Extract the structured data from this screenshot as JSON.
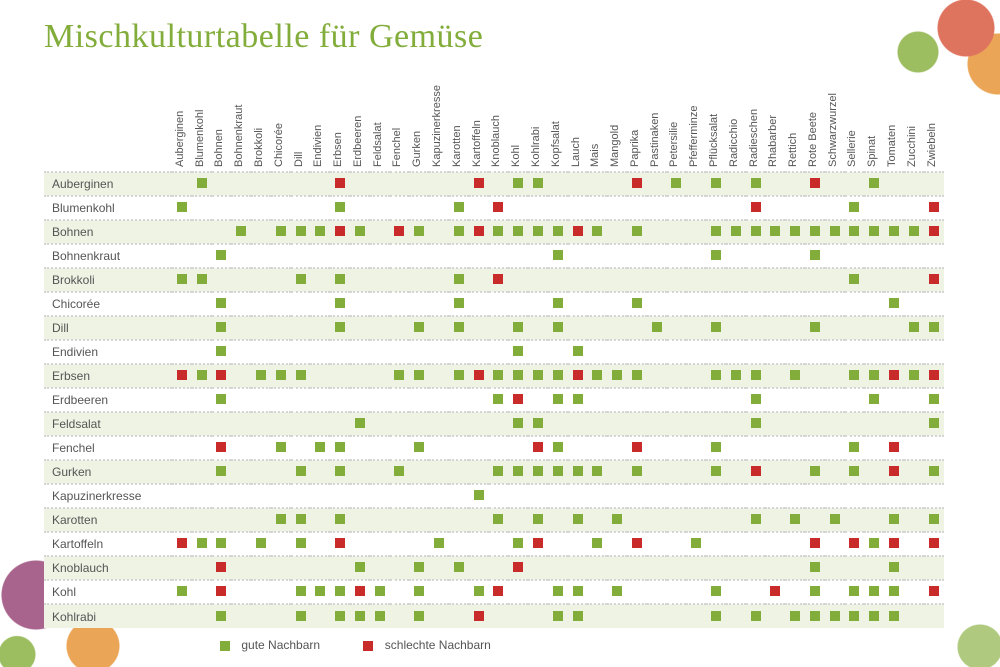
{
  "title": "Mischkulturtabelle für Gemüse",
  "good_color": "#82ad3b",
  "bad_color": "#c92a2a",
  "row_alt_bg": "#eff3e4",
  "legend": {
    "good": "gute Nachbarn",
    "bad": "schlechte Nachbarn"
  },
  "columns": [
    "Auberginen",
    "Blumenkohl",
    "Bohnen",
    "Bohnenkraut",
    "Brokkoli",
    "Chicorée",
    "Dill",
    "Endivien",
    "Erbsen",
    "Erdbeeren",
    "Feldsalat",
    "Fenchel",
    "Gurken",
    "Kapuzinerkresse",
    "Karotten",
    "Kartoffeln",
    "Knoblauch",
    "Kohl",
    "Kohlrabi",
    "Kopfsalat",
    "Lauch",
    "Mais",
    "Mangold",
    "Paprika",
    "Pastinaken",
    "Petersilie",
    "Pfefferminze",
    "Pflücksalat",
    "Radicchio",
    "Radieschen",
    "Rhabarber",
    "Rettich",
    "Rote Beete",
    "Schwarzwurzel",
    "Sellerie",
    "Spinat",
    "Tomaten",
    "Zucchini",
    "Zwiebeln"
  ],
  "rows": [
    {
      "label": "Auberginen",
      "cells": {
        "Blumenkohl": "g",
        "Erbsen": "b",
        "Kartoffeln": "b",
        "Kohl": "g",
        "Kohlrabi": "g",
        "Paprika": "b",
        "Petersilie": "g",
        "Pflücksalat": "g",
        "Radieschen": "g",
        "Rote Beete": "b",
        "Spinat": "g"
      }
    },
    {
      "label": "Blumenkohl",
      "cells": {
        "Auberginen": "g",
        "Erbsen": "g",
        "Karotten": "g",
        "Knoblauch": "b",
        "Radieschen": "b",
        "Sellerie": "g",
        "Zwiebeln": "b"
      }
    },
    {
      "label": "Bohnen",
      "cells": {
        "Bohnenkraut": "g",
        "Chicorée": "g",
        "Dill": "g",
        "Endivien": "g",
        "Erbsen": "b",
        "Erdbeeren": "g",
        "Fenchel": "b",
        "Gurken": "g",
        "Karotten": "g",
        "Kartoffeln": "b",
        "Knoblauch": "g",
        "Kohl": "g",
        "Kohlrabi": "g",
        "Kopfsalat": "g",
        "Lauch": "b",
        "Mais": "g",
        "Paprika": "g",
        "Pflücksalat": "g",
        "Radicchio": "g",
        "Radieschen": "g",
        "Rhabarber": "g",
        "Rettich": "g",
        "Rote Beete": "g",
        "Schwarzwurzel": "g",
        "Sellerie": "g",
        "Spinat": "g",
        "Tomaten": "g",
        "Zucchini": "g",
        "Zwiebeln": "b"
      }
    },
    {
      "label": "Bohnenkraut",
      "cells": {
        "Bohnen": "g",
        "Kopfsalat": "g",
        "Pflücksalat": "g",
        "Rote Beete": "g"
      }
    },
    {
      "label": "Brokkoli",
      "cells": {
        "Auberginen": "g",
        "Blumenkohl": "g",
        "Dill": "g",
        "Erbsen": "g",
        "Karotten": "g",
        "Knoblauch": "b",
        "Sellerie": "g",
        "Zwiebeln": "b"
      }
    },
    {
      "label": "Chicorée",
      "cells": {
        "Bohnen": "g",
        "Erbsen": "g",
        "Karotten": "g",
        "Kopfsalat": "g",
        "Paprika": "g",
        "Tomaten": "g"
      }
    },
    {
      "label": "Dill",
      "cells": {
        "Bohnen": "g",
        "Erbsen": "g",
        "Gurken": "g",
        "Karotten": "g",
        "Kohl": "g",
        "Kopfsalat": "g",
        "Pastinaken": "g",
        "Pflücksalat": "g",
        "Rote Beete": "g",
        "Zucchini": "g",
        "Zwiebeln": "g"
      }
    },
    {
      "label": "Endivien",
      "cells": {
        "Bohnen": "g",
        "Kohl": "g",
        "Lauch": "g"
      }
    },
    {
      "label": "Erbsen",
      "cells": {
        "Auberginen": "b",
        "Blumenkohl": "g",
        "Bohnen": "b",
        "Brokkoli": "g",
        "Chicorée": "g",
        "Dill": "g",
        "Fenchel": "g",
        "Gurken": "g",
        "Karotten": "g",
        "Kartoffeln": "b",
        "Knoblauch": "g",
        "Kohl": "g",
        "Kohlrabi": "g",
        "Kopfsalat": "g",
        "Lauch": "b",
        "Mais": "g",
        "Mangold": "g",
        "Paprika": "g",
        "Pflücksalat": "g",
        "Radicchio": "g",
        "Radieschen": "g",
        "Rettich": "g",
        "Sellerie": "g",
        "Spinat": "g",
        "Tomaten": "b",
        "Zucchini": "g",
        "Zwiebeln": "b"
      }
    },
    {
      "label": "Erdbeeren",
      "cells": {
        "Bohnen": "g",
        "Knoblauch": "g",
        "Kohl": "b",
        "Kopfsalat": "g",
        "Lauch": "g",
        "Radieschen": "g",
        "Spinat": "g",
        "Zwiebeln": "g"
      }
    },
    {
      "label": "Feldsalat",
      "cells": {
        "Erdbeeren": "g",
        "Kohl": "g",
        "Kohlrabi": "g",
        "Radieschen": "g",
        "Zwiebeln": "g"
      }
    },
    {
      "label": "Fenchel",
      "cells": {
        "Bohnen": "b",
        "Chicorée": "g",
        "Endivien": "g",
        "Erbsen": "g",
        "Gurken": "g",
        "Kohlrabi": "b",
        "Kopfsalat": "g",
        "Paprika": "b",
        "Pflücksalat": "g",
        "Sellerie": "g",
        "Tomaten": "b"
      }
    },
    {
      "label": "Gurken",
      "cells": {
        "Bohnen": "g",
        "Dill": "g",
        "Erbsen": "g",
        "Fenchel": "g",
        "Knoblauch": "g",
        "Kohl": "g",
        "Kohlrabi": "g",
        "Kopfsalat": "g",
        "Lauch": "g",
        "Mais": "g",
        "Paprika": "g",
        "Pflücksalat": "g",
        "Radieschen": "b",
        "Rote Beete": "g",
        "Sellerie": "g",
        "Tomaten": "b",
        "Zwiebeln": "g"
      }
    },
    {
      "label": "Kapuzinerkresse",
      "cells": {
        "Kartoffeln": "g"
      }
    },
    {
      "label": "Karotten",
      "cells": {
        "Chicorée": "g",
        "Dill": "g",
        "Erbsen": "g",
        "Knoblauch": "g",
        "Kohlrabi": "g",
        "Lauch": "g",
        "Mangold": "g",
        "Radieschen": "g",
        "Rettich": "g",
        "Schwarzwurzel": "g",
        "Tomaten": "g",
        "Zwiebeln": "g"
      }
    },
    {
      "label": "Kartoffeln",
      "cells": {
        "Auberginen": "b",
        "Blumenkohl": "g",
        "Bohnen": "g",
        "Brokkoli": "g",
        "Dill": "g",
        "Erbsen": "b",
        "Kapuzinerkresse": "g",
        "Kohl": "g",
        "Kohlrabi": "b",
        "Mais": "g",
        "Paprika": "b",
        "Pfefferminze": "g",
        "Rote Beete": "b",
        "Sellerie": "b",
        "Spinat": "g",
        "Tomaten": "b",
        "Zwiebeln": "b"
      }
    },
    {
      "label": "Knoblauch",
      "cells": {
        "Bohnen": "b",
        "Erdbeeren": "g",
        "Gurken": "g",
        "Karotten": "g",
        "Kohl": "b",
        "Rote Beete": "g",
        "Tomaten": "g"
      }
    },
    {
      "label": "Kohl",
      "cells": {
        "Auberginen": "g",
        "Bohnen": "b",
        "Dill": "g",
        "Endivien": "g",
        "Erbsen": "g",
        "Erdbeeren": "b",
        "Feldsalat": "g",
        "Gurken": "g",
        "Kartoffeln": "g",
        "Knoblauch": "b",
        "Kopfsalat": "g",
        "Lauch": "g",
        "Mangold": "g",
        "Pflücksalat": "g",
        "Rhabarber": "b",
        "Rote Beete": "g",
        "Sellerie": "g",
        "Spinat": "g",
        "Tomaten": "g",
        "Zwiebeln": "b"
      }
    },
    {
      "label": "Kohlrabi",
      "cells": {
        "Bohnen": "g",
        "Dill": "g",
        "Erbsen": "g",
        "Erdbeeren": "g",
        "Feldsalat": "g",
        "Gurken": "g",
        "Kartoffeln": "b",
        "Kopfsalat": "g",
        "Lauch": "g",
        "Pflücksalat": "g",
        "Radieschen": "g",
        "Rettich": "g",
        "Rote Beete": "g",
        "Schwarzwurzel": "g",
        "Sellerie": "g",
        "Spinat": "g",
        "Tomaten": "g"
      }
    }
  ]
}
